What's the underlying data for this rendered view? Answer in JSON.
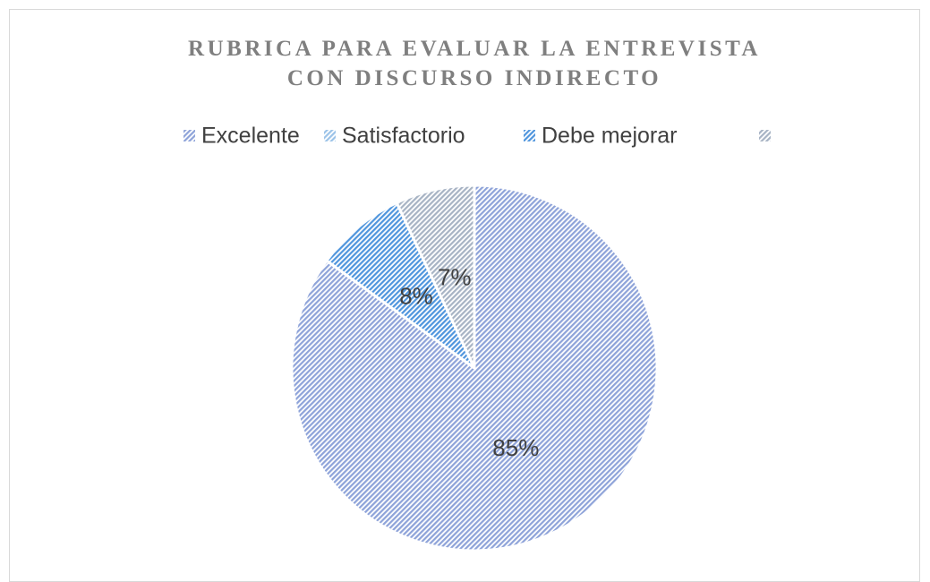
{
  "chart_data": {
    "type": "pie",
    "title": "RUBRICA PARA EVALUAR LA ENTREVISTA CON DISCURSO INDIRECTO",
    "categories": [
      "Excelente",
      "Satisfactorio",
      "Debe mejorar",
      null
    ],
    "values": [
      85,
      0,
      8,
      7
    ],
    "value_labels": [
      "85%",
      null,
      "8%",
      "7%"
    ],
    "colors": [
      "#8ea3d9",
      "#9cc3e8",
      "#4f95dd",
      "#a7b3c4"
    ],
    "legend": "top"
  }
}
